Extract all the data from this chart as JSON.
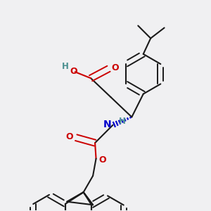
{
  "bg_color": "#f0f0f2",
  "bond_color": "#1a1a1a",
  "oxygen_color": "#cc0000",
  "nitrogen_color": "#0000cc",
  "hydrogen_color": "#4a9090",
  "figsize": [
    3.0,
    3.0
  ],
  "dpi": 100,
  "xlim": [
    0,
    10
  ],
  "ylim": [
    0,
    10
  ]
}
